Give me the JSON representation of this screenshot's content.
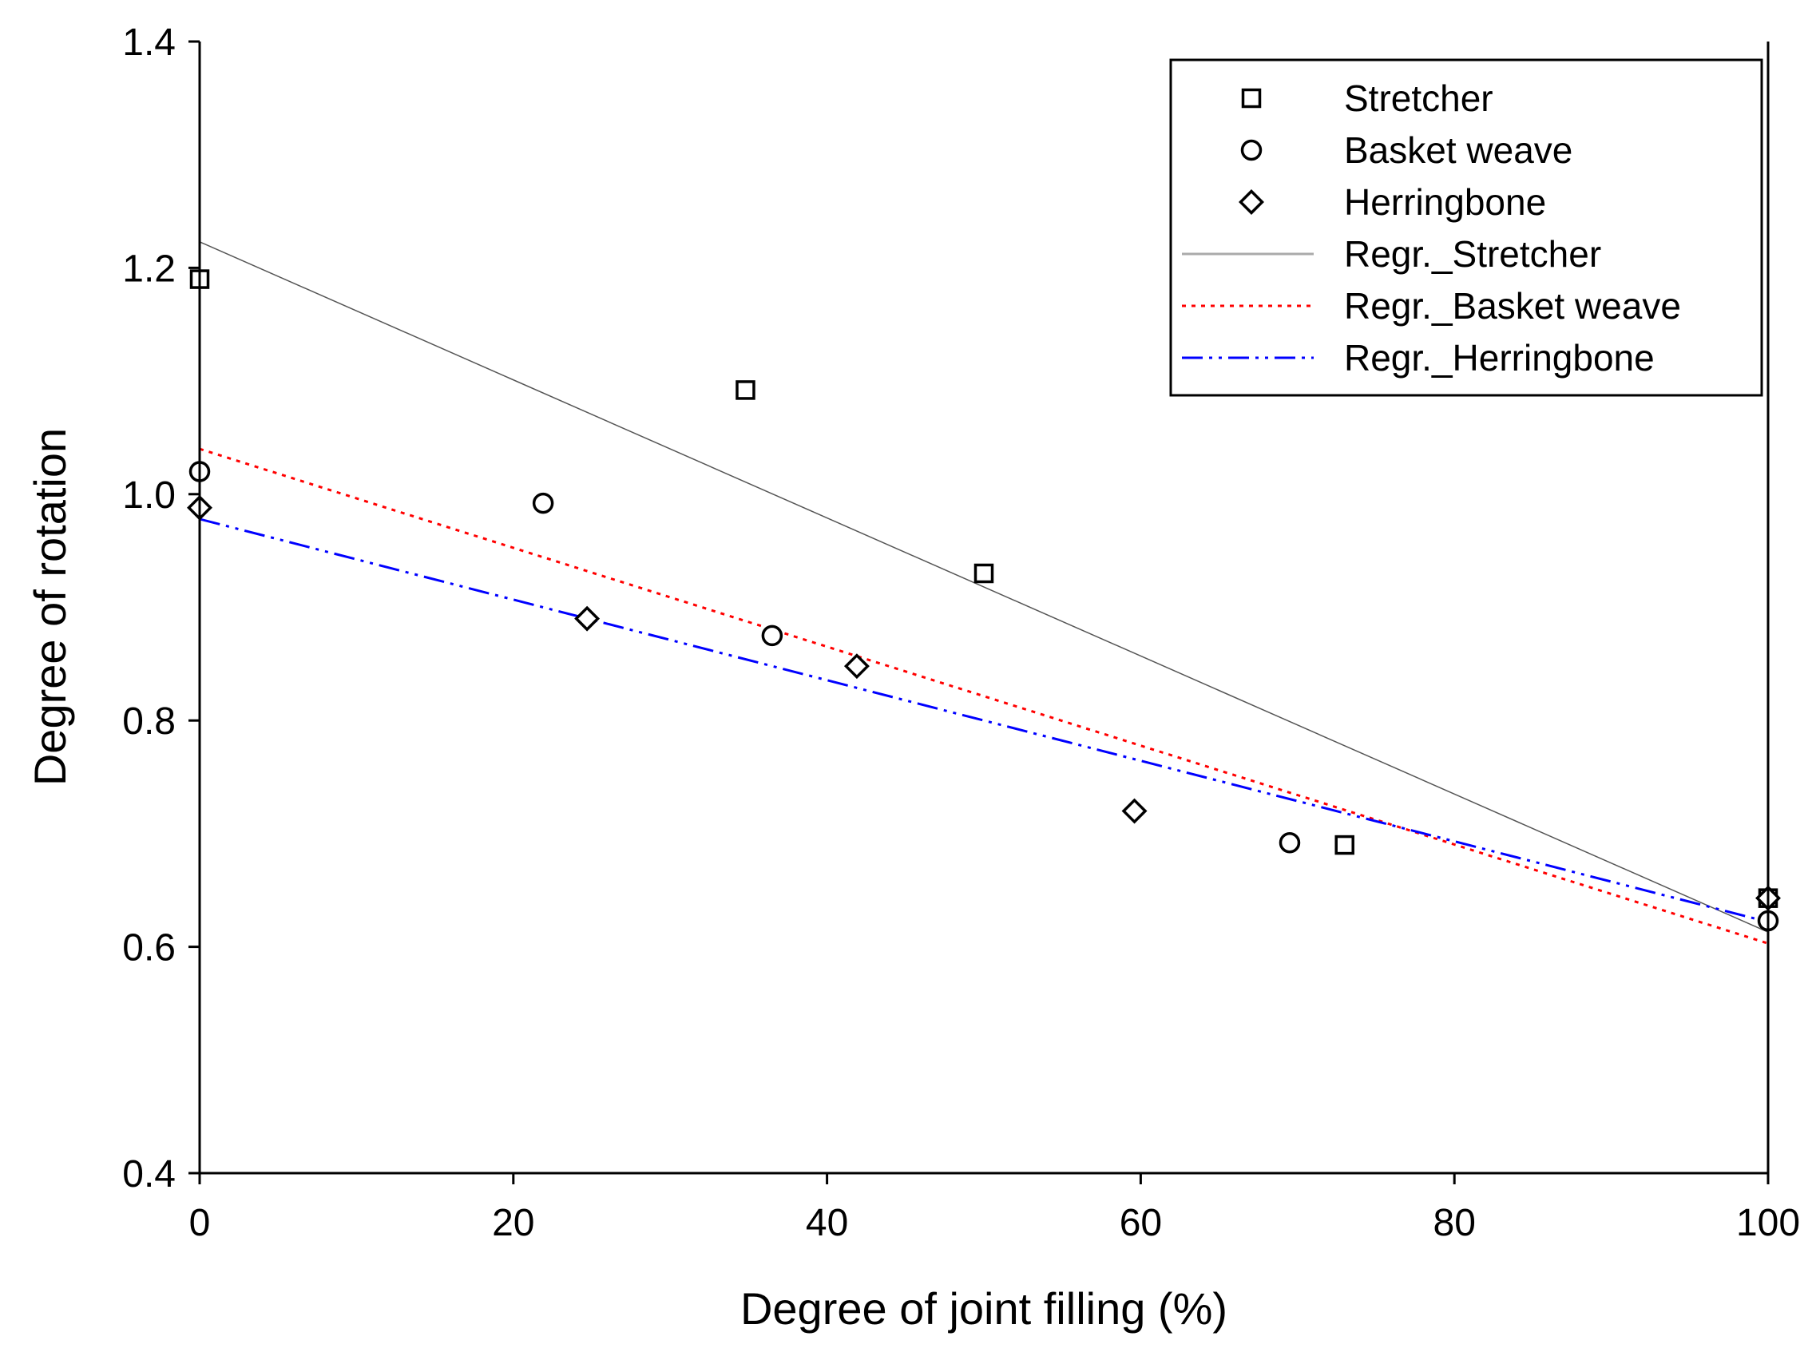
{
  "chart_data": {
    "type": "scatter",
    "title": "",
    "xlabel": "Degree of joint filling (%)",
    "ylabel": "Degree of rotation",
    "xlim": [
      0,
      100
    ],
    "ylim": [
      0.4,
      1.4
    ],
    "xticks": [
      0,
      20,
      40,
      60,
      80,
      100
    ],
    "xtick_labels": [
      "0",
      "20",
      "40",
      "60",
      "80",
      "100"
    ],
    "yticks": [
      0.4,
      0.6,
      0.8,
      1.0,
      1.2,
      1.4
    ],
    "ytick_labels": [
      "0.4",
      "0.6",
      "0.8",
      "1.0",
      "1.2",
      "1.4"
    ],
    "grid": false,
    "legend_position": "top-right",
    "series": [
      {
        "name": "Stretcher",
        "marker": "square",
        "x": [
          0,
          34.8,
          50,
          73,
          100
        ],
        "y": [
          1.19,
          1.092,
          0.93,
          0.69,
          0.643
        ]
      },
      {
        "name": "Basket weave",
        "marker": "circle",
        "x": [
          0,
          21.9,
          36.5,
          69.5,
          100
        ],
        "y": [
          1.02,
          0.992,
          0.875,
          0.692,
          0.623
        ]
      },
      {
        "name": "Herringbone",
        "marker": "diamond",
        "x": [
          0,
          24.7,
          41.9,
          59.6,
          100
        ],
        "y": [
          0.988,
          0.89,
          0.848,
          0.72,
          0.643
        ]
      }
    ],
    "regressions": [
      {
        "name": "Regr._Stretcher",
        "style": "solid",
        "color": "#555555",
        "x": [
          0,
          100
        ],
        "y": [
          1.223,
          0.613
        ]
      },
      {
        "name": "Regr._Basket weave",
        "style": "dotted",
        "color": "#ff0000",
        "x": [
          0,
          100
        ],
        "y": [
          1.04,
          0.603
        ]
      },
      {
        "name": "Regr._Herringbone",
        "style": "dash-dot-dot",
        "color": "#0000ff",
        "x": [
          0,
          100
        ],
        "y": [
          0.978,
          0.622
        ]
      }
    ]
  }
}
